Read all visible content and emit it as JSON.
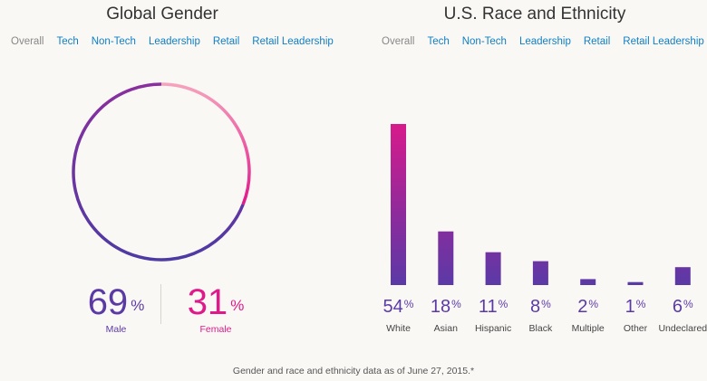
{
  "gender": {
    "title": "Global Gender",
    "tabs": [
      "Overall",
      "Tech",
      "Non-Tech",
      "Leadership",
      "Retail",
      "Retail Leadership"
    ],
    "active_tab": "Overall",
    "male": {
      "value": "69",
      "unit": "%",
      "label": "Male",
      "color": "#5b3aa6"
    },
    "female": {
      "value": "31",
      "unit": "%",
      "label": "Female",
      "color": "#e0198a"
    }
  },
  "race": {
    "title": "U.S. Race and Ethnicity",
    "tabs": [
      "Overall",
      "Tech",
      "Non-Tech",
      "Leadership",
      "Retail",
      "Retail Leadership"
    ],
    "active_tab": "Overall"
  },
  "footnote": "Gender and race and ethnicity data as of June 27, 2015.*",
  "colors": {
    "purple": "#5b3aa6",
    "magenta": "#e0198a",
    "pink_light": "#f6a3bd",
    "link": "#0f7fc4"
  },
  "chart_data": [
    {
      "type": "pie",
      "title": "Global Gender",
      "categories": [
        "Male",
        "Female"
      ],
      "values": [
        69,
        31
      ],
      "unit": "%"
    },
    {
      "type": "bar",
      "title": "U.S. Race and Ethnicity",
      "categories": [
        "White",
        "Asian",
        "Hispanic",
        "Black",
        "Multiple",
        "Other",
        "Undeclared"
      ],
      "values": [
        54,
        18,
        11,
        8,
        2,
        1,
        6
      ],
      "unit": "%",
      "ylim": [
        0,
        54
      ]
    }
  ]
}
